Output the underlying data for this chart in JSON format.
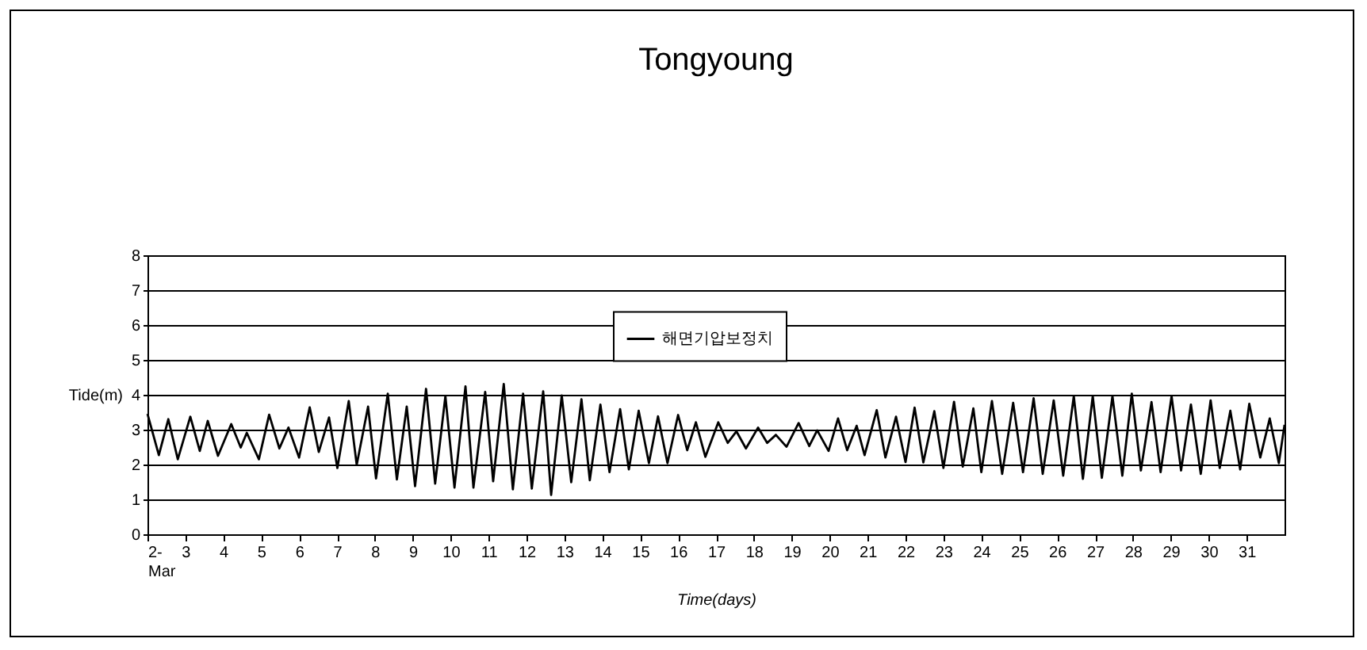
{
  "chart_data": {
    "type": "line",
    "title": "Tongyoung",
    "xlabel": "Time(days)",
    "ylabel": "Tide(m)",
    "xlim": [
      2,
      32
    ],
    "xticks": [
      {
        "value": 2,
        "label": "2-\nMar"
      },
      3,
      4,
      5,
      6,
      7,
      8,
      9,
      10,
      11,
      12,
      13,
      14,
      15,
      16,
      17,
      18,
      19,
      20,
      21,
      22,
      23,
      24,
      25,
      26,
      27,
      28,
      29,
      30,
      31
    ],
    "ylim": [
      0,
      8
    ],
    "yticks": [
      0,
      1,
      2,
      3,
      4,
      5,
      6,
      7,
      8
    ],
    "grid": "y",
    "legend": "top",
    "line_style": "solid",
    "marker": "none",
    "series": [
      {
        "name": "해면기압보정치",
        "color": "#000000",
        "x": [
          2.0,
          2.3,
          2.55,
          2.8,
          3.13,
          3.38,
          3.59,
          3.86,
          4.21,
          4.46,
          4.62,
          4.94,
          5.21,
          5.48,
          5.72,
          6.0,
          6.28,
          6.52,
          6.79,
          7.01,
          7.31,
          7.52,
          7.82,
          8.03,
          8.34,
          8.58,
          8.84,
          9.06,
          9.35,
          9.59,
          9.86,
          10.1,
          10.39,
          10.6,
          10.91,
          11.12,
          11.4,
          11.64,
          11.91,
          12.14,
          12.44,
          12.65,
          12.93,
          13.18,
          13.45,
          13.67,
          13.95,
          14.19,
          14.47,
          14.7,
          14.96,
          15.23,
          15.47,
          15.72,
          16.0,
          16.24,
          16.47,
          16.72,
          17.06,
          17.31,
          17.54,
          17.79,
          18.11,
          18.35,
          18.58,
          18.86,
          19.18,
          19.46,
          19.67,
          19.97,
          20.22,
          20.46,
          20.71,
          20.92,
          21.24,
          21.47,
          21.75,
          22.0,
          22.24,
          22.47,
          22.76,
          23.0,
          23.28,
          23.51,
          23.79,
          24.0,
          24.28,
          24.55,
          24.84,
          25.1,
          25.38,
          25.62,
          25.91,
          26.16,
          26.44,
          26.68,
          26.94,
          27.18,
          27.46,
          27.72,
          27.97,
          28.21,
          28.49,
          28.73,
          29.02,
          29.27,
          29.53,
          29.79,
          30.05,
          30.29,
          30.57,
          30.83,
          31.07,
          31.36,
          31.61,
          31.85,
          32.0
        ],
        "values": [
          3.45,
          2.27,
          3.3,
          2.15,
          3.37,
          2.39,
          3.25,
          2.25,
          3.16,
          2.49,
          2.91,
          2.15,
          3.43,
          2.46,
          3.06,
          2.2,
          3.64,
          2.36,
          3.35,
          1.9,
          3.82,
          1.99,
          3.66,
          1.6,
          4.03,
          1.57,
          3.66,
          1.38,
          4.17,
          1.45,
          3.96,
          1.34,
          4.24,
          1.34,
          4.08,
          1.52,
          4.31,
          1.29,
          4.03,
          1.31,
          4.1,
          1.13,
          3.98,
          1.49,
          3.87,
          1.55,
          3.72,
          1.78,
          3.59,
          1.86,
          3.54,
          2.04,
          3.38,
          2.04,
          3.42,
          2.41,
          3.21,
          2.22,
          3.21,
          2.62,
          2.95,
          2.46,
          3.06,
          2.62,
          2.85,
          2.51,
          3.19,
          2.53,
          2.98,
          2.39,
          3.32,
          2.41,
          3.11,
          2.27,
          3.56,
          2.2,
          3.37,
          2.07,
          3.63,
          2.06,
          3.53,
          1.9,
          3.8,
          1.94,
          3.61,
          1.78,
          3.82,
          1.73,
          3.77,
          1.78,
          3.9,
          1.73,
          3.84,
          1.68,
          3.96,
          1.59,
          3.96,
          1.62,
          3.96,
          1.68,
          4.03,
          1.83,
          3.79,
          1.78,
          3.96,
          1.83,
          3.72,
          1.73,
          3.84,
          1.9,
          3.54,
          1.86,
          3.74,
          2.2,
          3.32,
          2.04,
          3.14
        ]
      }
    ]
  }
}
